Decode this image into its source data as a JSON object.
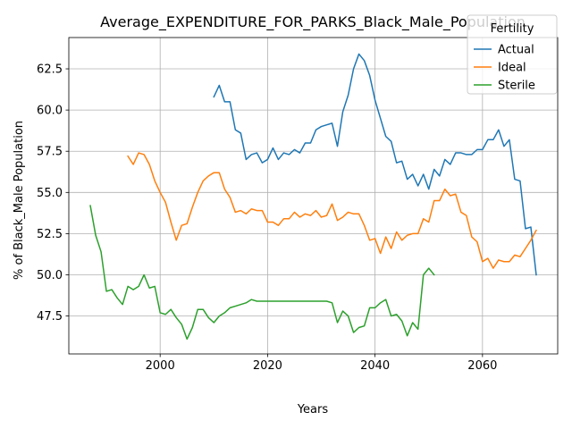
{
  "chart_data": {
    "type": "line",
    "title": "Average_EXPENDITURE_FOR_PARKS_Black_Male_Population",
    "xlabel": "Years",
    "ylabel": "% of Black_Male Population",
    "xlim": [
      1983,
      2074
    ],
    "ylim": [
      45.2,
      64.4
    ],
    "x_ticks": [
      2000,
      2020,
      2040,
      2060
    ],
    "y_ticks": [
      47.5,
      50.0,
      52.5,
      55.0,
      57.5,
      60.0,
      62.5
    ],
    "y_tick_labels": [
      "47.5",
      "50.0",
      "52.5",
      "55.0",
      "57.5",
      "60.0",
      "62.5"
    ],
    "grid": true,
    "legend": {
      "title": "Fertility",
      "position": "top-right"
    },
    "series": [
      {
        "name": "Actual",
        "color": "#1f77b4",
        "x": [
          2010,
          2011,
          2012,
          2013,
          2014,
          2015,
          2016,
          2017,
          2018,
          2019,
          2020,
          2021,
          2022,
          2023,
          2024,
          2025,
          2026,
          2027,
          2028,
          2029,
          2030,
          2031,
          2032,
          2033,
          2034,
          2035,
          2036,
          2037,
          2038,
          2039,
          2040,
          2041,
          2042,
          2043,
          2044,
          2045,
          2046,
          2047,
          2048,
          2049,
          2050,
          2051,
          2052,
          2053,
          2054,
          2055,
          2056,
          2057,
          2058,
          2059,
          2060,
          2061,
          2062,
          2063,
          2064,
          2065,
          2066,
          2067,
          2068,
          2069,
          2070
        ],
        "values": [
          60.8,
          61.5,
          60.5,
          60.5,
          58.8,
          58.6,
          57.0,
          57.3,
          57.4,
          56.8,
          57.0,
          57.7,
          57.0,
          57.4,
          57.3,
          57.6,
          57.4,
          58.0,
          58.0,
          58.8,
          59.0,
          59.1,
          59.2,
          57.8,
          59.9,
          60.9,
          62.5,
          63.4,
          63.0,
          62.1,
          60.6,
          59.5,
          58.4,
          58.1,
          56.8,
          56.9,
          55.8,
          56.1,
          55.4,
          56.1,
          55.2,
          56.4,
          56.0,
          57.0,
          56.7,
          57.4,
          57.4,
          57.3,
          57.3,
          57.6,
          57.6,
          58.2,
          58.2,
          58.8,
          57.8,
          58.2,
          55.8,
          55.7,
          52.8,
          52.9,
          50.0
        ]
      },
      {
        "name": "Ideal",
        "color": "#ff7f0e",
        "x": [
          1994,
          1995,
          1996,
          1997,
          1998,
          1999,
          2000,
          2001,
          2002,
          2003,
          2004,
          2005,
          2006,
          2007,
          2008,
          2009,
          2010,
          2011,
          2012,
          2013,
          2014,
          2015,
          2016,
          2017,
          2018,
          2019,
          2020,
          2021,
          2022,
          2023,
          2024,
          2025,
          2026,
          2027,
          2028,
          2029,
          2030,
          2031,
          2032,
          2033,
          2034,
          2035,
          2036,
          2037,
          2038,
          2039,
          2040,
          2041,
          2042,
          2043,
          2044,
          2045,
          2046,
          2047,
          2048,
          2049,
          2050,
          2051,
          2052,
          2053,
          2054,
          2055,
          2056,
          2057,
          2058,
          2059,
          2060,
          2061,
          2062,
          2063,
          2064,
          2065,
          2066,
          2067,
          2068,
          2069,
          2070
        ],
        "values": [
          57.2,
          56.7,
          57.4,
          57.3,
          56.7,
          55.7,
          55.0,
          54.4,
          53.2,
          52.1,
          53.0,
          53.1,
          54.1,
          55.0,
          55.7,
          56.0,
          56.2,
          56.2,
          55.2,
          54.7,
          53.8,
          53.9,
          53.7,
          54.0,
          53.9,
          53.9,
          53.2,
          53.2,
          53.0,
          53.4,
          53.4,
          53.8,
          53.5,
          53.7,
          53.6,
          53.9,
          53.5,
          53.6,
          54.3,
          53.3,
          53.5,
          53.8,
          53.7,
          53.7,
          53.0,
          52.1,
          52.2,
          51.3,
          52.3,
          51.6,
          52.6,
          52.1,
          52.4,
          52.5,
          52.5,
          53.4,
          53.2,
          54.5,
          54.5,
          55.2,
          54.8,
          54.9,
          53.8,
          53.6,
          52.3,
          52.0,
          50.8,
          51.0,
          50.4,
          50.9,
          50.8,
          50.8,
          51.2,
          51.1,
          51.6,
          52.1,
          52.7
        ]
      },
      {
        "name": "Sterile",
        "color": "#2ca02c",
        "x": [
          1987,
          1988,
          1989,
          1990,
          1991,
          1992,
          1993,
          1994,
          1995,
          1996,
          1997,
          1998,
          1999,
          2000,
          2001,
          2002,
          2003,
          2004,
          2005,
          2006,
          2007,
          2008,
          2009,
          2010,
          2011,
          2012,
          2013,
          2014,
          2015,
          2016,
          2017,
          2018,
          2019,
          2020,
          2021,
          2022,
          2023,
          2024,
          2025,
          2026,
          2027,
          2028,
          2029,
          2030,
          2031,
          2032,
          2033,
          2034,
          2035,
          2036,
          2037,
          2038,
          2039,
          2040,
          2041,
          2042,
          2043,
          2044,
          2045,
          2046,
          2047,
          2048,
          2049,
          2050,
          2051
        ],
        "values": [
          54.2,
          52.4,
          51.4,
          49.0,
          49.1,
          48.6,
          48.2,
          49.3,
          49.1,
          49.3,
          50.0,
          49.2,
          49.3,
          47.7,
          47.6,
          47.9,
          47.4,
          47.0,
          46.1,
          46.8,
          47.9,
          47.9,
          47.4,
          47.1,
          47.5,
          47.7,
          48.0,
          48.1,
          48.2,
          48.3,
          48.5,
          48.4,
          48.4,
          48.4,
          48.4,
          48.4,
          48.4,
          48.4,
          48.4,
          48.4,
          48.4,
          48.4,
          48.4,
          48.4,
          48.4,
          48.3,
          47.1,
          47.8,
          47.5,
          46.5,
          46.8,
          46.9,
          48.0,
          48.0,
          48.3,
          48.5,
          47.5,
          47.6,
          47.2,
          46.3,
          47.1,
          46.7,
          50.0,
          50.4,
          50.0
        ]
      }
    ]
  }
}
